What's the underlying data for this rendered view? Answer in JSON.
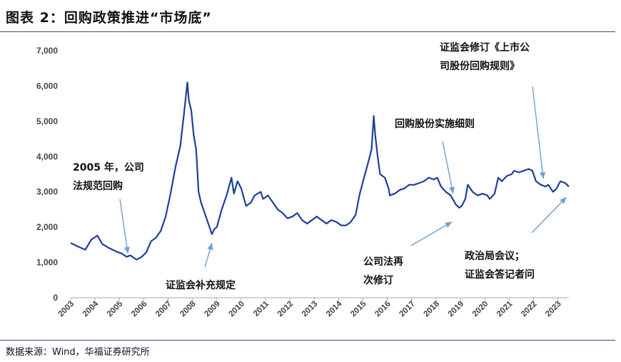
{
  "figure": {
    "title": "图表 2：回购政策推进“市场底”",
    "source": "数据来源：Wind，华福证券研究所"
  },
  "colors": {
    "line": "#1f3f9a",
    "arrow": "#6f9fd6",
    "rule": "#2f4f7f",
    "axis": "#aaaaaa"
  },
  "chart_data": {
    "type": "line",
    "title": "",
    "xlabel": "",
    "ylabel": "",
    "ylim": [
      0,
      7000
    ],
    "xlim": [
      2003.0,
      2023.45
    ],
    "grid": false,
    "y_ticks": [
      0,
      1000,
      2000,
      3000,
      4000,
      5000,
      6000,
      7000
    ],
    "y_tick_labels": [
      "0",
      "1,000",
      "2,000",
      "3,000",
      "4,000",
      "5,000",
      "6,000",
      "7,000"
    ],
    "x_tick_labels": [
      "2003",
      "2004",
      "2005",
      "2006",
      "2007",
      "2008",
      "2009",
      "2010",
      "2011",
      "2012",
      "2013",
      "2014",
      "2015",
      "2016",
      "2017",
      "2018",
      "2019",
      "2020",
      "2021",
      "2022",
      "2023"
    ],
    "series": [
      {
        "x": [
          2003.0,
          2003.3,
          2003.6,
          2003.85,
          2004.1,
          2004.3,
          2004.6,
          2004.9,
          2005.1,
          2005.3,
          2005.45,
          2005.7,
          2005.9,
          2006.1,
          2006.3,
          2006.5,
          2006.7,
          2006.9,
          2007.1,
          2007.3,
          2007.5,
          2007.65,
          2007.79,
          2007.85,
          2007.95,
          2008.05,
          2008.15,
          2008.25,
          2008.35,
          2008.5,
          2008.65,
          2008.8,
          2008.9,
          2009.0,
          2009.2,
          2009.4,
          2009.6,
          2009.7,
          2009.85,
          2010.0,
          2010.2,
          2010.4,
          2010.55,
          2010.8,
          2010.9,
          2011.1,
          2011.3,
          2011.5,
          2011.7,
          2011.9,
          2012.1,
          2012.3,
          2012.5,
          2012.7,
          2012.9,
          2013.1,
          2013.3,
          2013.5,
          2013.7,
          2013.9,
          2014.1,
          2014.3,
          2014.5,
          2014.7,
          2014.85,
          2015.0,
          2015.2,
          2015.35,
          2015.44,
          2015.5,
          2015.6,
          2015.7,
          2015.9,
          2016.05,
          2016.1,
          2016.3,
          2016.5,
          2016.7,
          2016.9,
          2017.1,
          2017.3,
          2017.5,
          2017.7,
          2017.9,
          2018.05,
          2018.2,
          2018.4,
          2018.6,
          2018.8,
          2018.95,
          2019.05,
          2019.2,
          2019.3,
          2019.5,
          2019.7,
          2019.9,
          2020.1,
          2020.2,
          2020.4,
          2020.55,
          2020.7,
          2020.9,
          2021.1,
          2021.2,
          2021.4,
          2021.6,
          2021.8,
          2021.95,
          2022.1,
          2022.3,
          2022.5,
          2022.6,
          2022.8,
          2022.95,
          2023.1,
          2023.3,
          2023.45
        ],
        "y": [
          1550,
          1450,
          1360,
          1650,
          1760,
          1520,
          1400,
          1300,
          1250,
          1160,
          1200,
          1080,
          1150,
          1280,
          1600,
          1700,
          1900,
          2300,
          2950,
          3700,
          4300,
          5200,
          6100,
          5600,
          5300,
          4600,
          4200,
          3000,
          2700,
          2400,
          2100,
          1800,
          1950,
          2000,
          2500,
          2900,
          3400,
          2950,
          3300,
          3100,
          2600,
          2700,
          2900,
          3000,
          2800,
          2900,
          2700,
          2500,
          2400,
          2250,
          2300,
          2400,
          2200,
          2100,
          2200,
          2300,
          2200,
          2100,
          2200,
          2150,
          2050,
          2050,
          2150,
          2350,
          2900,
          3300,
          3800,
          4200,
          5150,
          4600,
          4000,
          3500,
          3400,
          3100,
          2900,
          2950,
          3050,
          3100,
          3200,
          3200,
          3250,
          3300,
          3400,
          3350,
          3400,
          3150,
          3000,
          2900,
          2650,
          2550,
          2600,
          2800,
          3200,
          3000,
          2900,
          2950,
          2900,
          2800,
          2950,
          3400,
          3300,
          3450,
          3500,
          3600,
          3550,
          3600,
          3650,
          3600,
          3300,
          3200,
          3150,
          3200,
          3000,
          3100,
          3300,
          3250,
          3150
        ]
      }
    ],
    "annotations": [
      {
        "lines": [
          "2005 年，公司",
          "法规范回购"
        ],
        "arrow_to": [
          2005.35,
          1250
        ]
      },
      {
        "lines": [
          "证监会补充规定"
        ],
        "arrow_to": [
          2008.8,
          1550
        ]
      },
      {
        "lines": [
          "公司法再",
          "次修订"
        ],
        "arrow_to": [
          2018.65,
          2150
        ]
      },
      {
        "lines": [
          "回购股份实施细则"
        ],
        "arrow_to": [
          2018.7,
          2950
        ]
      },
      {
        "lines": [
          "证监会修订《上市公",
          "司股份回购规则》"
        ],
        "arrow_to": [
          2022.4,
          3370
        ]
      },
      {
        "lines": [
          "政治局会议；",
          "证监会答记者问"
        ],
        "arrow_to": [
          2023.35,
          2850
        ]
      }
    ]
  }
}
